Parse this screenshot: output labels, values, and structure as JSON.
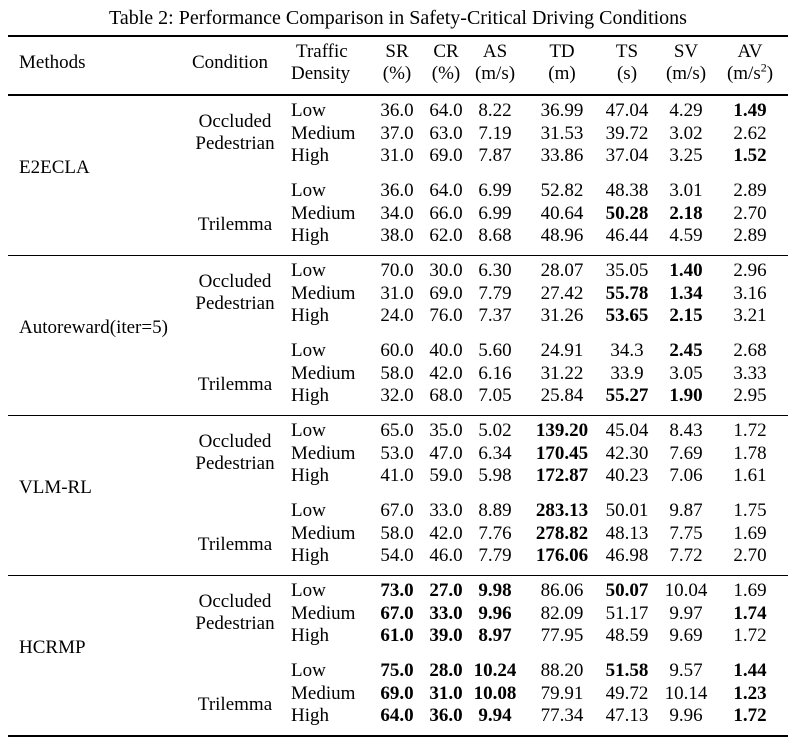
{
  "caption": "Table 2: Performance Comparison in Safety-Critical Driving Conditions",
  "headers": {
    "methods": "Methods",
    "condition": "Condition",
    "density_line1": "Traffic",
    "density_line2": "Density",
    "metrics": [
      {
        "name": "SR",
        "unit": "(%)"
      },
      {
        "name": "CR",
        "unit": "(%)"
      },
      {
        "name": "AS",
        "unit": "(m/s)"
      },
      {
        "name": "TD",
        "unit": "(m)"
      },
      {
        "name": "TS",
        "unit": "(s)"
      },
      {
        "name": "SV",
        "unit": "(m/s)"
      },
      {
        "name": "AV",
        "unit": "(m/s",
        "unit_sup": "2",
        "unit_end": ")"
      }
    ]
  },
  "methods": [
    {
      "name": "E2ECLA",
      "conditions": [
        {
          "name_line1": "Occluded",
          "name_line2": "Pedestrian",
          "rows": [
            {
              "density": "Low",
              "values": [
                "36.0",
                "64.0",
                "8.22",
                "36.99",
                "47.04",
                "4.29",
                "1.49"
              ],
              "bold": [
                false,
                false,
                false,
                false,
                false,
                false,
                true
              ]
            },
            {
              "density": "Medium",
              "values": [
                "37.0",
                "63.0",
                "7.19",
                "31.53",
                "39.72",
                "3.02",
                "2.62"
              ],
              "bold": [
                false,
                false,
                false,
                false,
                false,
                false,
                false
              ]
            },
            {
              "density": "High",
              "values": [
                "31.0",
                "69.0",
                "7.87",
                "33.86",
                "37.04",
                "3.25",
                "1.52"
              ],
              "bold": [
                false,
                false,
                false,
                false,
                false,
                false,
                true
              ]
            }
          ]
        },
        {
          "name_line1": "Trilemma",
          "name_line2": "",
          "rows": [
            {
              "density": "Low",
              "values": [
                "36.0",
                "64.0",
                "6.99",
                "52.82",
                "48.38",
                "3.01",
                "2.89"
              ],
              "bold": [
                false,
                false,
                false,
                false,
                false,
                false,
                false
              ]
            },
            {
              "density": "Medium",
              "values": [
                "34.0",
                "66.0",
                "6.99",
                "40.64",
                "50.28",
                "2.18",
                "2.70"
              ],
              "bold": [
                false,
                false,
                false,
                false,
                true,
                true,
                false
              ]
            },
            {
              "density": "High",
              "values": [
                "38.0",
                "62.0",
                "8.68",
                "48.96",
                "46.44",
                "4.59",
                "2.89"
              ],
              "bold": [
                false,
                false,
                false,
                false,
                false,
                false,
                false
              ]
            }
          ]
        }
      ]
    },
    {
      "name": "Autoreward(iter=5)",
      "conditions": [
        {
          "name_line1": "Occluded",
          "name_line2": "Pedestrian",
          "rows": [
            {
              "density": "Low",
              "values": [
                "70.0",
                "30.0",
                "6.30",
                "28.07",
                "35.05",
                "1.40",
                "2.96"
              ],
              "bold": [
                false,
                false,
                false,
                false,
                false,
                true,
                false
              ]
            },
            {
              "density": "Medium",
              "values": [
                "31.0",
                "69.0",
                "7.79",
                "27.42",
                "55.78",
                "1.34",
                "3.16"
              ],
              "bold": [
                false,
                false,
                false,
                false,
                true,
                true,
                false
              ]
            },
            {
              "density": "High",
              "values": [
                "24.0",
                "76.0",
                "7.37",
                "31.26",
                "53.65",
                "2.15",
                "3.21"
              ],
              "bold": [
                false,
                false,
                false,
                false,
                true,
                true,
                false
              ]
            }
          ]
        },
        {
          "name_line1": "Trilemma",
          "name_line2": "",
          "rows": [
            {
              "density": "Low",
              "values": [
                "60.0",
                "40.0",
                "5.60",
                "24.91",
                "34.3",
                "2.45",
                "2.68"
              ],
              "bold": [
                false,
                false,
                false,
                false,
                false,
                true,
                false
              ]
            },
            {
              "density": "Medium",
              "values": [
                "58.0",
                "42.0",
                "6.16",
                "31.22",
                "33.9",
                "3.05",
                "3.33"
              ],
              "bold": [
                false,
                false,
                false,
                false,
                false,
                false,
                false
              ]
            },
            {
              "density": "High",
              "values": [
                "32.0",
                "68.0",
                "7.05",
                "25.84",
                "55.27",
                "1.90",
                "2.95"
              ],
              "bold": [
                false,
                false,
                false,
                false,
                true,
                true,
                false
              ]
            }
          ]
        }
      ]
    },
    {
      "name": "VLM-RL",
      "conditions": [
        {
          "name_line1": "Occluded",
          "name_line2": "Pedestrian",
          "rows": [
            {
              "density": "Low",
              "values": [
                "65.0",
                "35.0",
                "5.02",
                "139.20",
                "45.04",
                "8.43",
                "1.72"
              ],
              "bold": [
                false,
                false,
                false,
                true,
                false,
                false,
                false
              ]
            },
            {
              "density": "Medium",
              "values": [
                "53.0",
                "47.0",
                "6.34",
                "170.45",
                "42.30",
                "7.69",
                "1.78"
              ],
              "bold": [
                false,
                false,
                false,
                true,
                false,
                false,
                false
              ]
            },
            {
              "density": "High",
              "values": [
                "41.0",
                "59.0",
                "5.98",
                "172.87",
                "40.23",
                "7.06",
                "1.61"
              ],
              "bold": [
                false,
                false,
                false,
                true,
                false,
                false,
                false
              ]
            }
          ]
        },
        {
          "name_line1": "Trilemma",
          "name_line2": "",
          "rows": [
            {
              "density": "Low",
              "values": [
                "67.0",
                "33.0",
                "8.89",
                "283.13",
                "50.01",
                "9.87",
                "1.75"
              ],
              "bold": [
                false,
                false,
                false,
                true,
                false,
                false,
                false
              ]
            },
            {
              "density": "Medium",
              "values": [
                "58.0",
                "42.0",
                "7.76",
                "278.82",
                "48.13",
                "7.75",
                "1.69"
              ],
              "bold": [
                false,
                false,
                false,
                true,
                false,
                false,
                false
              ]
            },
            {
              "density": "High",
              "values": [
                "54.0",
                "46.0",
                "7.79",
                "176.06",
                "46.98",
                "7.72",
                "2.70"
              ],
              "bold": [
                false,
                false,
                false,
                true,
                false,
                false,
                false
              ]
            }
          ]
        }
      ]
    },
    {
      "name": "HCRMP",
      "conditions": [
        {
          "name_line1": "Occluded",
          "name_line2": "Pedestrian",
          "rows": [
            {
              "density": "Low",
              "values": [
                "73.0",
                "27.0",
                "9.98",
                "86.06",
                "50.07",
                "10.04",
                "1.69"
              ],
              "bold": [
                true,
                true,
                true,
                false,
                true,
                false,
                false
              ]
            },
            {
              "density": "Medium",
              "values": [
                "67.0",
                "33.0",
                "9.96",
                "82.09",
                "51.17",
                "9.97",
                "1.74"
              ],
              "bold": [
                true,
                true,
                true,
                false,
                false,
                false,
                true
              ]
            },
            {
              "density": "High",
              "values": [
                "61.0",
                "39.0",
                "8.97",
                "77.95",
                "48.59",
                "9.69",
                "1.72"
              ],
              "bold": [
                true,
                true,
                true,
                false,
                false,
                false,
                false
              ]
            }
          ]
        },
        {
          "name_line1": "Trilemma",
          "name_line2": "",
          "rows": [
            {
              "density": "Low",
              "values": [
                "75.0",
                "28.0",
                "10.24",
                "88.20",
                "51.58",
                "9.57",
                "1.44"
              ],
              "bold": [
                true,
                true,
                true,
                false,
                true,
                false,
                true
              ]
            },
            {
              "density": "Medium",
              "values": [
                "69.0",
                "31.0",
                "10.08",
                "79.91",
                "49.72",
                "10.14",
                "1.23"
              ],
              "bold": [
                true,
                true,
                true,
                false,
                false,
                false,
                true
              ]
            },
            {
              "density": "High",
              "values": [
                "64.0",
                "36.0",
                "9.94",
                "77.34",
                "47.13",
                "9.96",
                "1.72"
              ],
              "bold": [
                true,
                true,
                true,
                false,
                false,
                false,
                true
              ]
            }
          ]
        }
      ]
    }
  ]
}
